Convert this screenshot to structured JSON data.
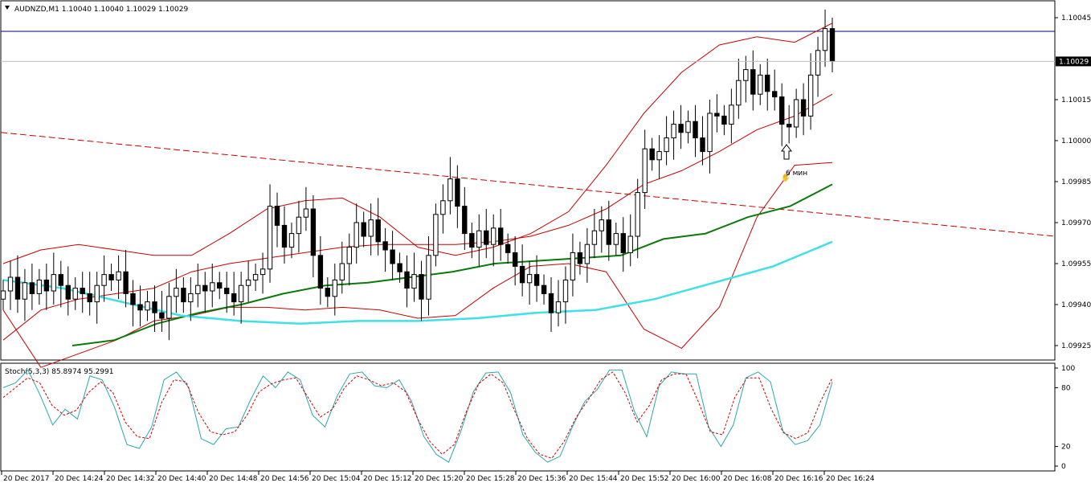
{
  "header": {
    "symbol_line": "AUDNZD,M1  1.10040 1.10040 1.10029 1.10029"
  },
  "indicator_header": "Stoch(5,3,3) 85.8974 95.2991",
  "annotation": {
    "label": "6 мин"
  },
  "colors": {
    "candle": "#000000",
    "bollinger": "#c80000",
    "ma_green": "#0a7a0a",
    "ma_cyan": "#3fe0e8",
    "trendline": "#c80000",
    "hline": "#00007a",
    "stoch_main": "#2aa7b0",
    "stoch_signal": "#d00000"
  },
  "chart_data": [
    {
      "type": "candlestick",
      "symbol": "AUDNZD",
      "timeframe": "M1",
      "ohlc_current": {
        "open": 1.1004,
        "high": 1.1004,
        "low": 1.10029,
        "close": 1.10029
      },
      "y_range": [
        1.0992,
        1.1005
      ],
      "y_ticks": [
        "1.10045",
        "1.10015",
        "1.10000",
        "1.09985",
        "1.09970",
        "1.09955",
        "1.09940",
        "1.09925"
      ],
      "current_price_label": "1.10029",
      "horizontal_line": 1.1004,
      "x_tick_labels": [
        "20 Dec 2017",
        "20 Dec 14:24",
        "20 Dec 14:32",
        "20 Dec 14:40",
        "20 Dec 14:48",
        "20 Dec 14:56",
        "20 Dec 15:04",
        "20 Dec 15:12",
        "20 Dec 15:20",
        "20 Dec 15:28",
        "20 Dec 15:36",
        "20 Dec 15:44",
        "20 Dec 15:52",
        "20 Dec 16:00",
        "20 Dec 16:08",
        "20 Dec 16:16",
        "20 Dec 16:24"
      ],
      "closes": [
        1.09945,
        1.0995,
        1.09942,
        1.09948,
        1.09944,
        1.09949,
        1.09945,
        1.09951,
        1.09947,
        1.09942,
        1.09946,
        1.09944,
        1.09941,
        1.09947,
        1.09951,
        1.09949,
        1.09952,
        1.09944,
        1.0994,
        1.09938,
        1.09941,
        1.09937,
        1.09935,
        1.09943,
        1.09946,
        1.09941,
        1.09944,
        1.09947,
        1.09945,
        1.09948,
        1.09946,
        1.09944,
        1.09941,
        1.09947,
        1.09949,
        1.09951,
        1.09953,
        1.09976,
        1.09969,
        1.09961,
        1.09966,
        1.09972,
        1.09975,
        1.09958,
        1.09946,
        1.09943,
        1.09949,
        1.09955,
        1.09961,
        1.0997,
        1.09965,
        1.09971,
        1.09963,
        1.0996,
        1.09955,
        1.09952,
        1.09946,
        1.09951,
        1.09942,
        1.09958,
        1.09973,
        1.09978,
        1.09986,
        1.09976,
        1.09966,
        1.09961,
        1.09967,
        1.09962,
        1.09968,
        1.09962,
        1.09959,
        1.09954,
        1.09948,
        1.09951,
        1.09947,
        1.09944,
        1.09937,
        1.09941,
        1.09949,
        1.09959,
        1.09955,
        1.09962,
        1.09967,
        1.09971,
        1.09962,
        1.09966,
        1.09959,
        1.09965,
        1.09981,
        1.09997,
        1.09993,
        1.09996,
        1.10001,
        1.10006,
        1.10003,
        1.10007,
        1.10001,
        1.09996,
        1.1001,
        1.10009,
        1.10006,
        1.10013,
        1.10022,
        1.10026,
        1.10017,
        1.10024,
        1.10018,
        1.10016,
        1.10006,
        1.10005,
        1.10015,
        1.10009,
        1.10024,
        1.10033,
        1.10041,
        1.10029
      ],
      "series": [
        {
          "values": [
            1.09955,
            1.0996,
            1.09962,
            1.0996,
            1.09958,
            1.09958,
            1.09966,
            1.09975,
            1.09978,
            1.09979,
            1.09972,
            1.09961,
            1.09958,
            1.09961,
            1.09966,
            1.09974,
            1.09991,
            1.1001,
            1.10025,
            1.10035,
            1.10038,
            1.10036,
            1.10043
          ]
        },
        {
          "values": [
            1.09927,
            1.09938,
            1.09942,
            1.09944,
            1.09946,
            1.09952,
            1.09955,
            1.09957,
            1.09959,
            1.09961,
            1.09962,
            1.09962,
            1.09962,
            1.09963,
            1.09965,
            1.09969,
            1.09975,
            1.09984,
            1.09989,
            1.09996,
            1.10004,
            1.10009,
            1.10017
          ]
        },
        {
          "values": [
            1.09938,
            1.09917,
            1.09922,
            1.09927,
            1.09934,
            1.09936,
            1.09939,
            1.09939,
            1.09938,
            1.09939,
            1.09938,
            1.09935,
            1.09936,
            1.09946,
            1.09954,
            1.09955,
            1.09952,
            1.09931,
            1.09924,
            1.09939,
            1.09972,
            1.09991,
            1.09992
          ]
        },
        {
          "values": [
            1.09925,
            1.09927,
            1.09933,
            1.09937,
            1.0994,
            1.09944,
            1.09947,
            1.09948,
            1.0995,
            1.09952,
            1.09955,
            1.09956,
            1.09957,
            1.09958,
            1.09964,
            1.09966,
            1.09972,
            1.09976,
            1.09984
          ]
        },
        {
          "values": [
            1.09949,
            1.09946,
            1.09941,
            1.09936,
            1.09934,
            1.09933,
            1.09934,
            1.09934,
            1.09935,
            1.09937,
            1.09938,
            1.09942,
            1.09948,
            1.09954,
            1.09963
          ]
        }
      ],
      "trendline": {
        "start": 1.10003,
        "end": 1.09965
      }
    },
    {
      "type": "line",
      "title": "Stoch(5,3,3) 85.8974 95.2991",
      "y_range": [
        0,
        100
      ],
      "y_ticks": [
        "100",
        "80",
        "20",
        "0"
      ],
      "series": [
        {
          "values": [
            80,
            85,
            98,
            72,
            42,
            58,
            48,
            92,
            88,
            60,
            22,
            18,
            40,
            88,
            96,
            80,
            28,
            22,
            38,
            40,
            68,
            92,
            80,
            96,
            88,
            52,
            40,
            72,
            94,
            96,
            82,
            80,
            88,
            66,
            30,
            12,
            4,
            36,
            76,
            95,
            96,
            75,
            32,
            14,
            4,
            10,
            40,
            66,
            78,
            98,
            98,
            56,
            30,
            82,
            96,
            94,
            94,
            40,
            20,
            42,
            90,
            96,
            86,
            36,
            22,
            26,
            42,
            86
          ]
        },
        {
          "values": [
            70,
            80,
            90,
            85,
            62,
            52,
            57,
            75,
            86,
            75,
            45,
            30,
            28,
            65,
            88,
            86,
            55,
            35,
            32,
            35,
            52,
            76,
            84,
            88,
            90,
            70,
            50,
            58,
            80,
            92,
            88,
            82,
            85,
            76,
            48,
            25,
            12,
            22,
            56,
            84,
            94,
            85,
            55,
            28,
            12,
            8,
            25,
            50,
            68,
            88,
            96,
            75,
            45,
            62,
            88,
            94,
            94,
            66,
            35,
            32,
            70,
            90,
            90,
            58,
            34,
            28,
            34,
            65,
            90
          ]
        }
      ]
    }
  ]
}
